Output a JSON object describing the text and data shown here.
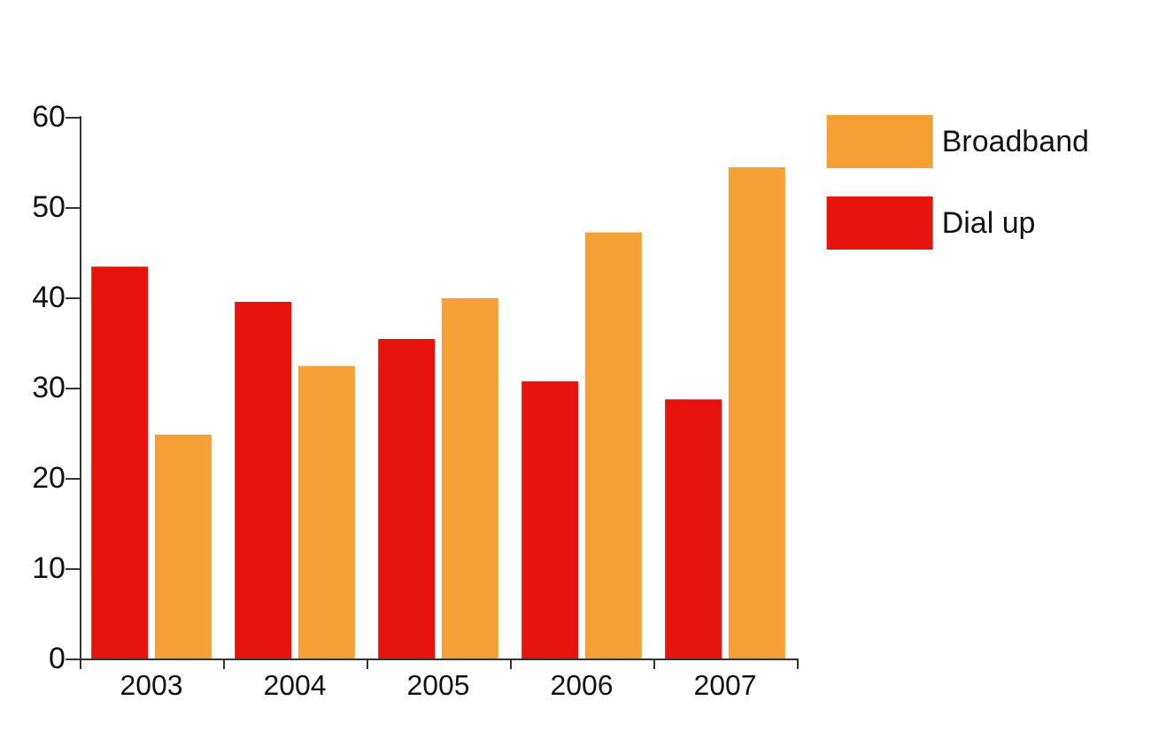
{
  "chart_data": {
    "type": "bar",
    "categories": [
      "2003",
      "2004",
      "2005",
      "2006",
      "2007"
    ],
    "series": [
      {
        "name": "Dial up",
        "color": "#e6140c",
        "values": [
          43.4,
          39.5,
          35.4,
          30.7,
          28.7
        ]
      },
      {
        "name": "Broadband",
        "color": "#f4a035",
        "values": [
          24.8,
          32.4,
          39.9,
          47.2,
          54.4
        ]
      }
    ],
    "ylim": [
      0,
      60
    ],
    "yticks": [
      0,
      10,
      20,
      30,
      40,
      50,
      60
    ],
    "grid": false,
    "legend": "right"
  }
}
